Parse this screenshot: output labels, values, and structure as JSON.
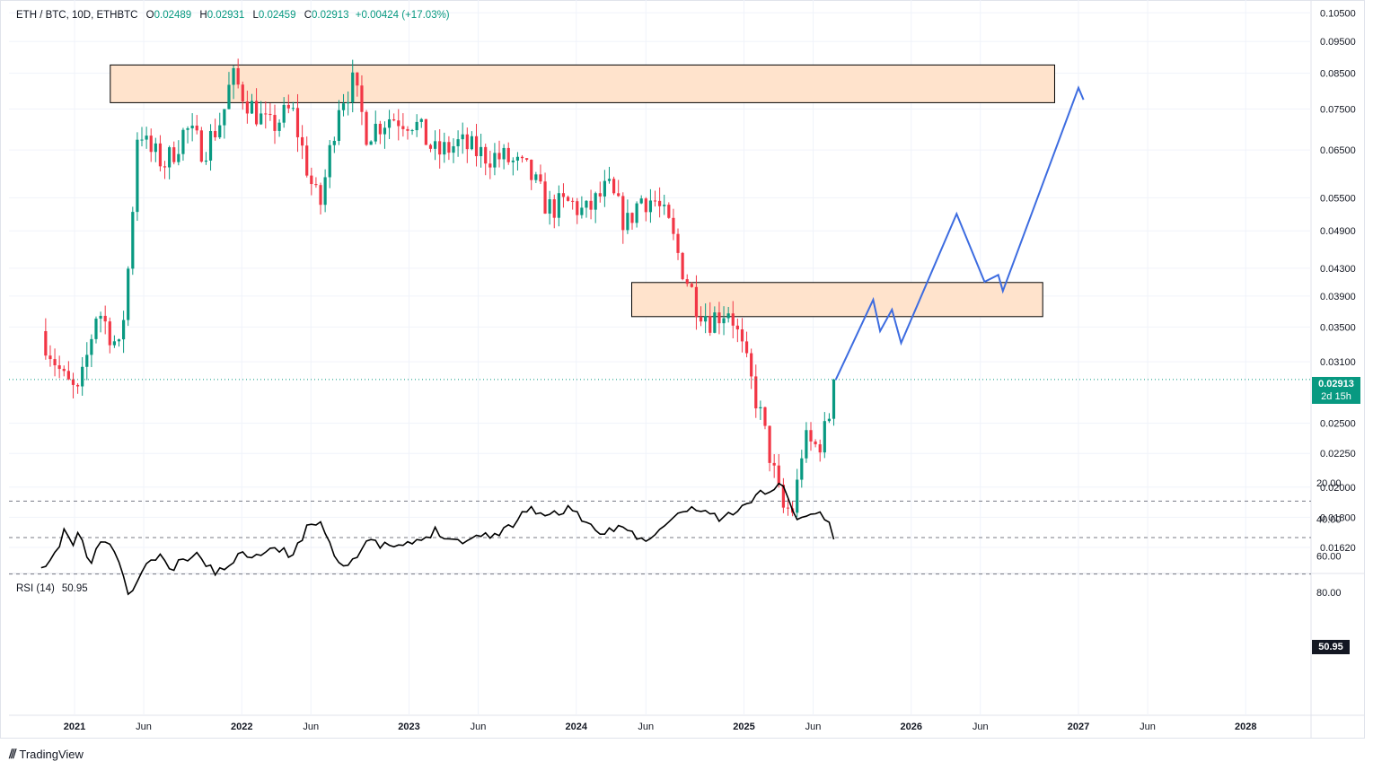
{
  "header": {
    "symbol": "ETH / BTC, 10D, ETHBTC",
    "o_label": "O",
    "o_value": "0.02489",
    "h_label": "H",
    "h_value": "0.02931",
    "l_label": "L",
    "l_value": "0.02459",
    "c_label": "C",
    "c_value": "0.02913",
    "change": "+0.00424 (+17.03%)"
  },
  "colors": {
    "up": "#089981",
    "down": "#f23645",
    "zone_fill": "#ffe3cc",
    "zone_stroke": "#000000",
    "projection": "#3d6ce0",
    "rsi_line": "#000000",
    "rsi_band": "#ede9f7",
    "grid": "#f0f3fa"
  },
  "price_label": {
    "value": "0.02913",
    "countdown": "2d 15h"
  },
  "rsi": {
    "label": "RSI (14)",
    "value": "50.95"
  },
  "brand": {
    "name": "TradingView",
    "icon": "tradingview-logo-icon"
  },
  "chart_data": [
    {
      "type": "candlestick",
      "title": "ETH / BTC, 10D, ETHBTC",
      "scale": "log",
      "ylim": [
        0.0155,
        0.1051
      ],
      "y_ticks": [
        "0.10500",
        "0.09500",
        "0.08500",
        "0.07500",
        "0.06500",
        "0.05500",
        "0.04900",
        "0.04300",
        "0.03900",
        "0.03500",
        "0.03100",
        "0.02500",
        "0.02250",
        "0.02000",
        "0.01800",
        "0.01620"
      ],
      "x_ticks": [
        "2021",
        "Jun",
        "2022",
        "Jun",
        "2023",
        "Jun",
        "2024",
        "Jun",
        "2025",
        "Jun",
        "2026",
        "Jun",
        "2027",
        "Jun",
        "2028"
      ],
      "xlim": [
        "2020-10-20",
        "2028-06-30"
      ],
      "close_series": [
        {
          "date": "2020-10-20",
          "close": 0.0345
        },
        {
          "date": "2020-12-10",
          "close": 0.029
        },
        {
          "date": "2021-01-10",
          "close": 0.0275
        },
        {
          "date": "2021-02-20",
          "close": 0.0375
        },
        {
          "date": "2021-04-10",
          "close": 0.032
        },
        {
          "date": "2021-05-01",
          "close": 0.045
        },
        {
          "date": "2021-05-20",
          "close": 0.072
        },
        {
          "date": "2021-06-10",
          "close": 0.065
        },
        {
          "date": "2021-07-20",
          "close": 0.062
        },
        {
          "date": "2021-09-01",
          "close": 0.07
        },
        {
          "date": "2021-10-10",
          "close": 0.065
        },
        {
          "date": "2021-11-20",
          "close": 0.073
        },
        {
          "date": "2021-12-10",
          "close": 0.084
        },
        {
          "date": "2022-01-20",
          "close": 0.076
        },
        {
          "date": "2022-03-01",
          "close": 0.07
        },
        {
          "date": "2022-04-20",
          "close": 0.075
        },
        {
          "date": "2022-06-01",
          "close": 0.058
        },
        {
          "date": "2022-06-20",
          "close": 0.053
        },
        {
          "date": "2022-08-01",
          "close": 0.077
        },
        {
          "date": "2022-09-01",
          "close": 0.082
        },
        {
          "date": "2022-10-01",
          "close": 0.069
        },
        {
          "date": "2022-11-20",
          "close": 0.073
        },
        {
          "date": "2023-01-10",
          "close": 0.072
        },
        {
          "date": "2023-03-01",
          "close": 0.064
        },
        {
          "date": "2023-04-20",
          "close": 0.0665
        },
        {
          "date": "2023-06-10",
          "close": 0.064
        },
        {
          "date": "2023-08-01",
          "close": 0.063
        },
        {
          "date": "2023-09-20",
          "close": 0.06
        },
        {
          "date": "2023-11-01",
          "close": 0.053
        },
        {
          "date": "2023-12-20",
          "close": 0.054
        },
        {
          "date": "2024-01-20",
          "close": 0.052
        },
        {
          "date": "2024-03-10",
          "close": 0.057
        },
        {
          "date": "2024-04-20",
          "close": 0.05
        },
        {
          "date": "2024-05-20",
          "close": 0.055
        },
        {
          "date": "2024-06-20",
          "close": 0.0545
        },
        {
          "date": "2024-07-20",
          "close": 0.05
        },
        {
          "date": "2024-08-20",
          "close": 0.043
        },
        {
          "date": "2024-09-20",
          "close": 0.038
        },
        {
          "date": "2024-10-20",
          "close": 0.036
        },
        {
          "date": "2024-12-01",
          "close": 0.0375
        },
        {
          "date": "2025-01-10",
          "close": 0.03
        },
        {
          "date": "2025-02-01",
          "close": 0.0265
        },
        {
          "date": "2025-03-01",
          "close": 0.022
        },
        {
          "date": "2025-03-25",
          "close": 0.0185
        },
        {
          "date": "2025-04-20",
          "close": 0.0185
        },
        {
          "date": "2025-05-10",
          "close": 0.0235
        },
        {
          "date": "2025-06-10",
          "close": 0.023
        },
        {
          "date": "2025-07-01",
          "close": 0.0247
        },
        {
          "date": "2025-07-20",
          "close": 0.0291
        }
      ],
      "last_price": 0.02913,
      "zones": [
        {
          "name": "upper resistance zone",
          "from": "2021-03-20",
          "to": "2026-11-10",
          "low": 0.0767,
          "high": 0.0875
        },
        {
          "name": "lower resistance zone",
          "from": "2024-05-01",
          "to": "2026-10-15",
          "low": 0.0363,
          "high": 0.0409
        }
      ],
      "projection": [
        {
          "date": "2025-07-20",
          "price": 0.0291
        },
        {
          "date": "2025-10-10",
          "price": 0.0385
        },
        {
          "date": "2025-10-25",
          "price": 0.0345
        },
        {
          "date": "2025-11-20",
          "price": 0.0372
        },
        {
          "date": "2025-12-10",
          "price": 0.0331
        },
        {
          "date": "2026-04-10",
          "price": 0.052
        },
        {
          "date": "2026-06-10",
          "price": 0.041
        },
        {
          "date": "2026-07-10",
          "price": 0.042
        },
        {
          "date": "2026-07-20",
          "price": 0.0397
        },
        {
          "date": "2027-01-01",
          "price": 0.0808
        },
        {
          "date": "2027-01-12",
          "price": 0.0775
        }
      ]
    },
    {
      "type": "line",
      "title": "RSI (14)",
      "ylim": [
        20,
        80
      ],
      "y_ticks": [
        "80.00",
        "60.00",
        "40.00",
        "20.00"
      ],
      "levels": [
        70,
        50,
        30
      ],
      "band": [
        30,
        70
      ],
      "last": 50.95,
      "series": [
        {
          "date": "2020-10-20",
          "value": 69
        },
        {
          "date": "2020-11-20",
          "value": 60
        },
        {
          "date": "2020-12-10",
          "value": 45
        },
        {
          "date": "2021-01-01",
          "value": 56
        },
        {
          "date": "2021-01-10",
          "value": 45
        },
        {
          "date": "2021-02-01",
          "value": 66
        },
        {
          "date": "2021-03-01",
          "value": 52
        },
        {
          "date": "2021-03-20",
          "value": 52
        },
        {
          "date": "2021-05-01",
          "value": 82
        },
        {
          "date": "2021-06-01",
          "value": 67
        },
        {
          "date": "2021-07-01",
          "value": 60
        },
        {
          "date": "2021-08-01",
          "value": 68
        },
        {
          "date": "2021-09-01",
          "value": 61
        },
        {
          "date": "2021-10-01",
          "value": 60
        },
        {
          "date": "2021-11-10",
          "value": 70
        },
        {
          "date": "2021-12-20",
          "value": 60
        },
        {
          "date": "2022-01-20",
          "value": 59
        },
        {
          "date": "2022-03-01",
          "value": 56
        },
        {
          "date": "2022-04-20",
          "value": 59
        },
        {
          "date": "2022-06-01",
          "value": 42
        },
        {
          "date": "2022-06-20",
          "value": 40
        },
        {
          "date": "2022-08-01",
          "value": 64
        },
        {
          "date": "2022-09-01",
          "value": 62
        },
        {
          "date": "2022-10-01",
          "value": 53
        },
        {
          "date": "2022-11-20",
          "value": 55
        },
        {
          "date": "2023-01-10",
          "value": 54
        },
        {
          "date": "2023-03-01",
          "value": 46
        },
        {
          "date": "2023-04-20",
          "value": 52
        },
        {
          "date": "2023-06-10",
          "value": 49
        },
        {
          "date": "2023-08-01",
          "value": 46
        },
        {
          "date": "2023-09-20",
          "value": 33
        },
        {
          "date": "2023-11-01",
          "value": 39
        },
        {
          "date": "2023-12-20",
          "value": 33
        },
        {
          "date": "2024-01-20",
          "value": 41
        },
        {
          "date": "2024-02-20",
          "value": 51
        },
        {
          "date": "2024-03-10",
          "value": 46
        },
        {
          "date": "2024-04-20",
          "value": 43
        },
        {
          "date": "2024-05-20",
          "value": 52
        },
        {
          "date": "2024-06-20",
          "value": 50
        },
        {
          "date": "2024-07-20",
          "value": 41
        },
        {
          "date": "2024-08-20",
          "value": 36
        },
        {
          "date": "2024-10-01",
          "value": 34
        },
        {
          "date": "2024-11-10",
          "value": 40
        },
        {
          "date": "2024-12-20",
          "value": 36
        },
        {
          "date": "2025-01-20",
          "value": 28
        },
        {
          "date": "2025-02-20",
          "value": 24
        },
        {
          "date": "2025-03-25",
          "value": 21
        },
        {
          "date": "2025-04-20",
          "value": 38
        },
        {
          "date": "2025-05-20",
          "value": 38
        },
        {
          "date": "2025-06-20",
          "value": 36
        },
        {
          "date": "2025-07-20",
          "value": 51
        }
      ]
    }
  ]
}
